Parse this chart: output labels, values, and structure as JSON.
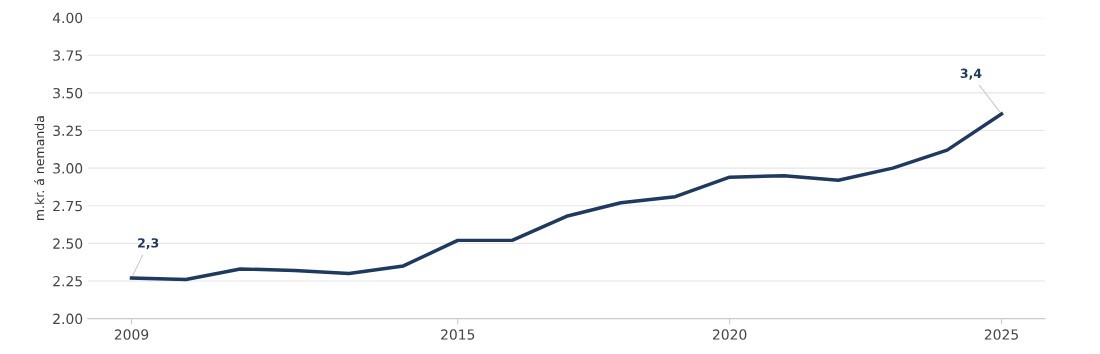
{
  "chart_data": {
    "type": "line",
    "ylabel": "m.kr. á nemanda",
    "x": [
      2009,
      2010,
      2011,
      2012,
      2013,
      2014,
      2015,
      2016,
      2017,
      2018,
      2019,
      2020,
      2021,
      2022,
      2023,
      2024,
      2025
    ],
    "series": [
      {
        "color": "#1f3a5f",
        "values": [
          2.27,
          2.26,
          2.33,
          2.32,
          2.3,
          2.35,
          2.52,
          2.52,
          2.68,
          2.77,
          2.81,
          2.94,
          2.95,
          2.92,
          3.0,
          3.12,
          3.36
        ]
      }
    ],
    "xlim": [
      2008.2,
      2025.8
    ],
    "xticks": [
      2009,
      2015,
      2020,
      2025
    ],
    "ylim": [
      2.0,
      4.0
    ],
    "yticks": [
      {
        "value": 2.0,
        "label": "2.00"
      },
      {
        "value": 2.25,
        "label": "2.25"
      },
      {
        "value": 2.5,
        "label": "2.50"
      },
      {
        "value": 2.75,
        "label": "2.75"
      },
      {
        "value": 3.0,
        "label": "3.00"
      },
      {
        "value": 3.25,
        "label": "3.25"
      },
      {
        "value": 3.5,
        "label": "3.50"
      },
      {
        "value": 3.75,
        "label": "3.75"
      },
      {
        "value": 4.0,
        "label": "4.00"
      }
    ],
    "grid": "y",
    "marker": "none",
    "line_style": "solid",
    "annotations": [
      {
        "text": "2,3",
        "x": 2009,
        "y": 2.27
      },
      {
        "text": "3,4",
        "x": 2025,
        "y": 3.36
      }
    ]
  }
}
